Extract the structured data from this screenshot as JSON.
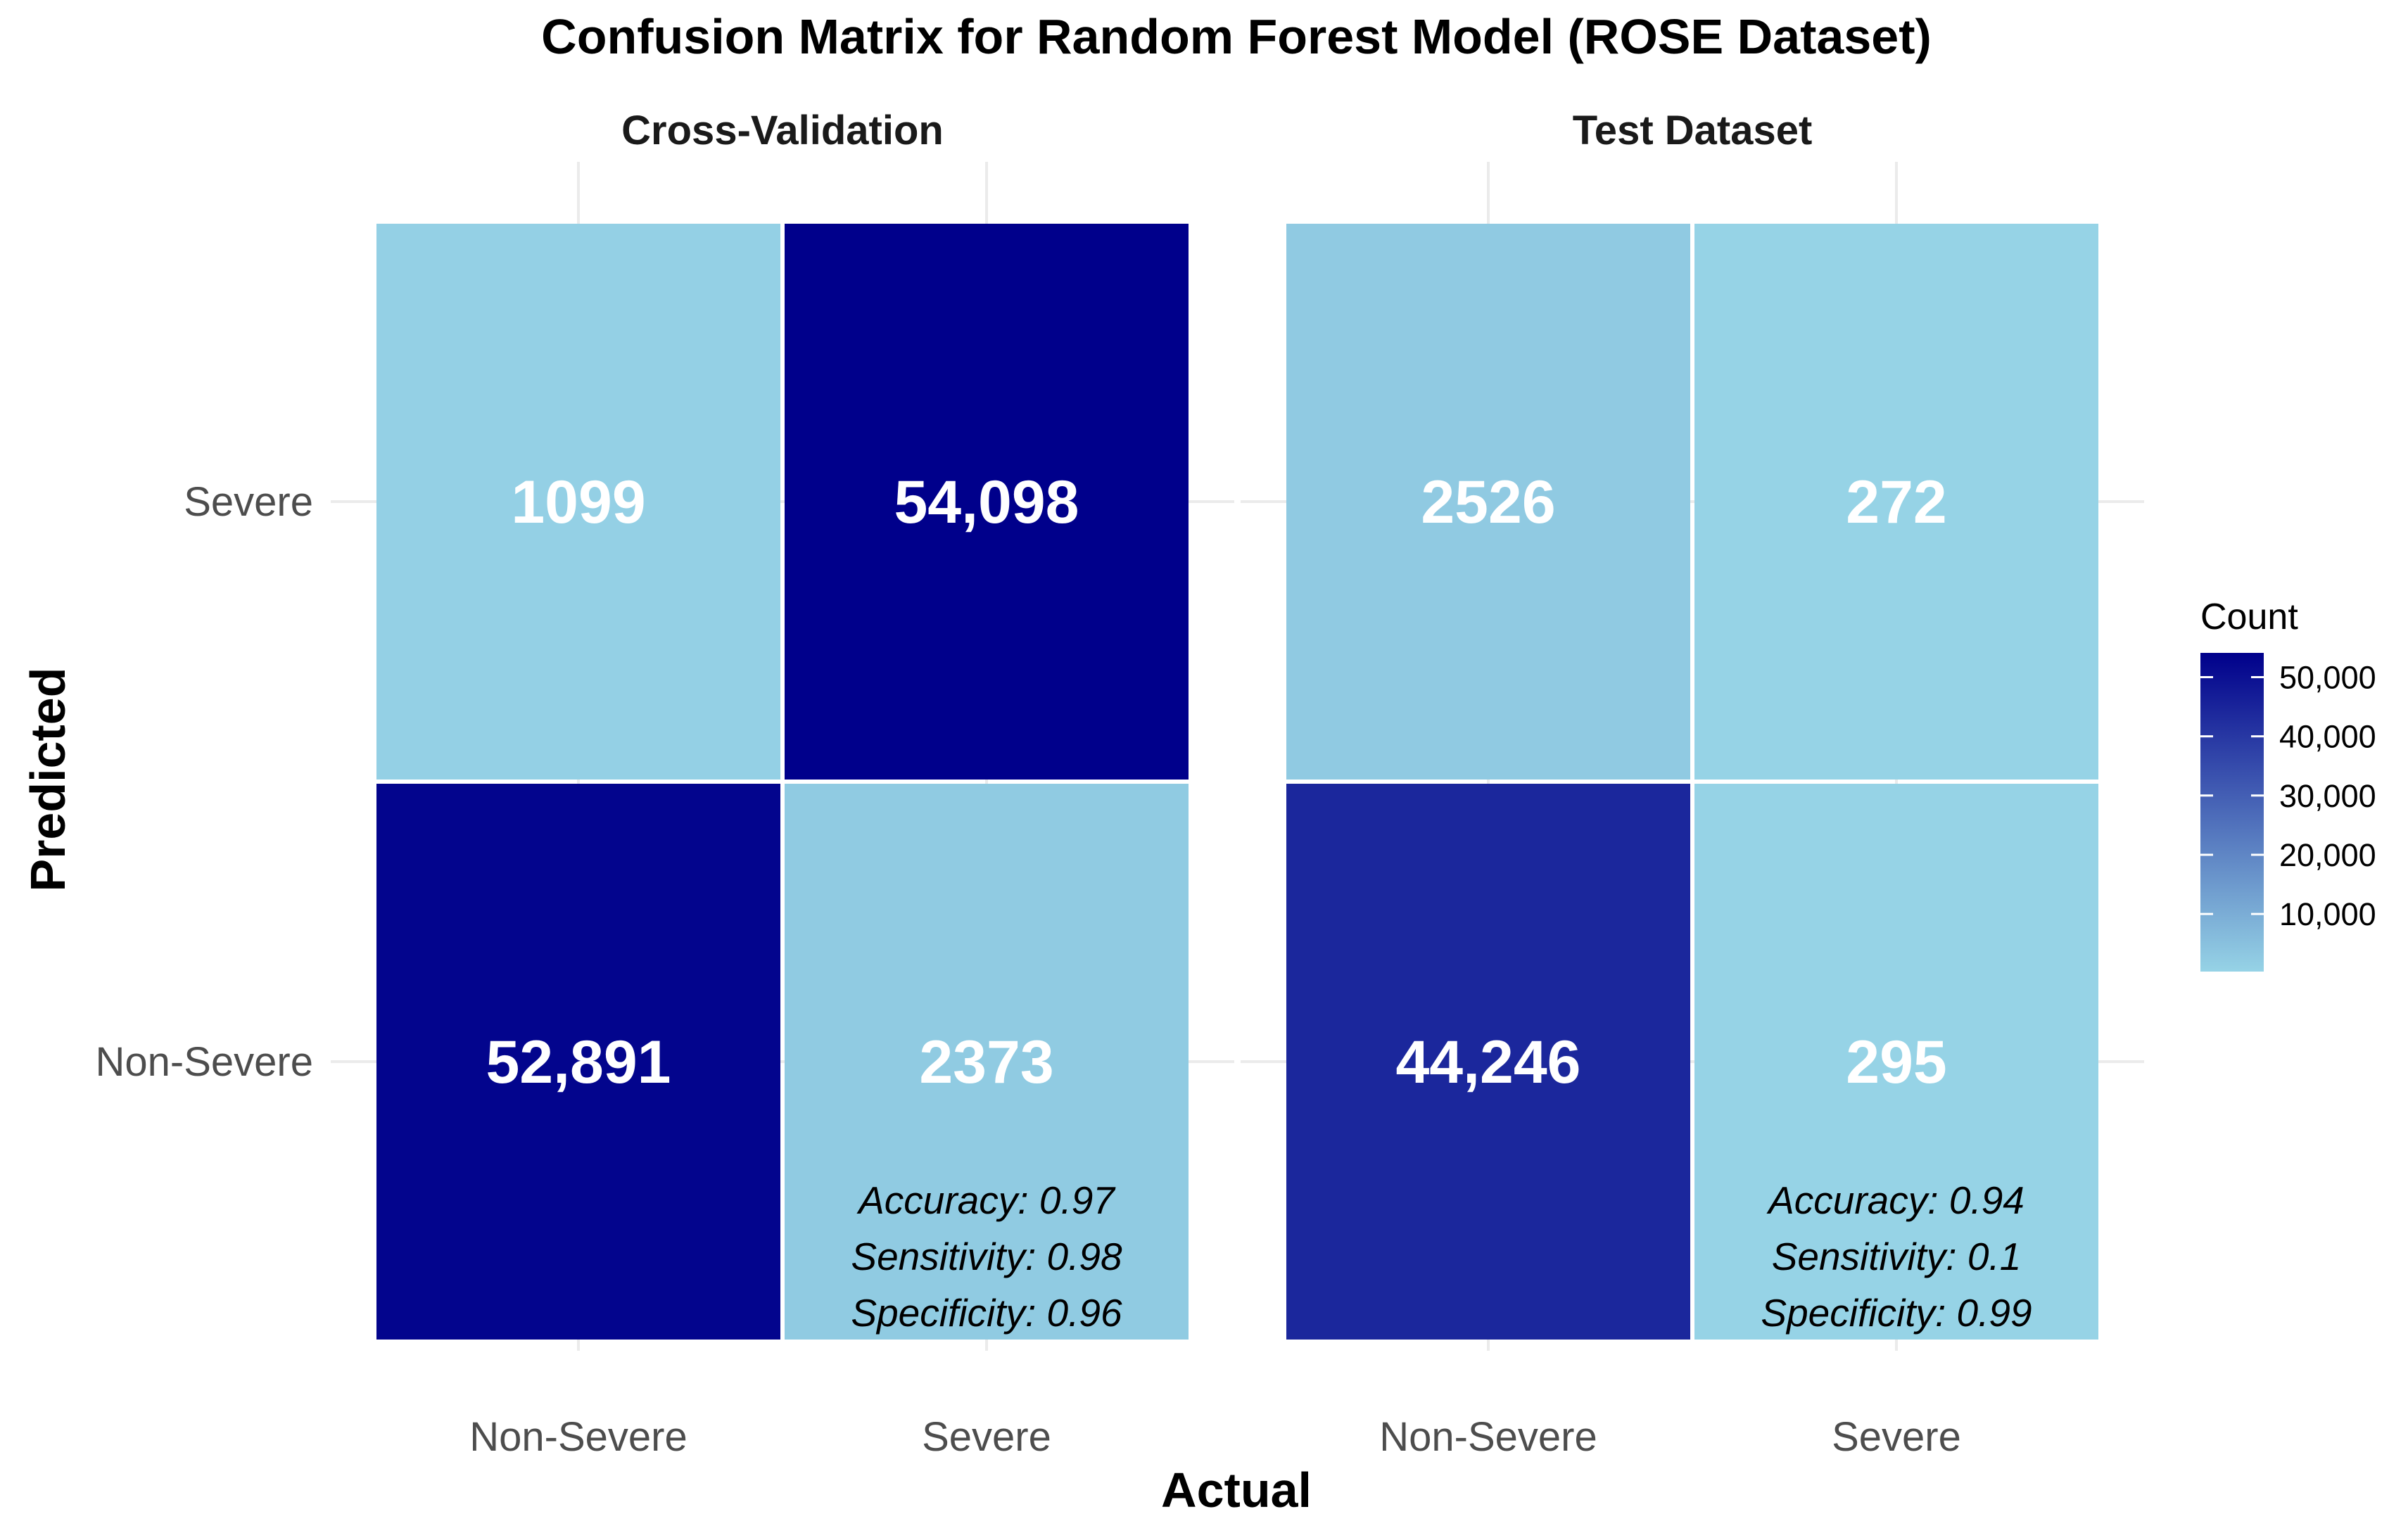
{
  "chart_data": {
    "type": "heatmap",
    "title": "Confusion Matrix for Random Forest Model (ROSE Dataset)",
    "xlabel": "Actual",
    "ylabel": "Predicted",
    "x_categories": [
      "Non-Severe",
      "Severe"
    ],
    "y_categories": [
      "Non-Severe",
      "Severe"
    ],
    "legend": {
      "title": "Count",
      "position": "right",
      "min": 272,
      "max": 54098,
      "ticks": [
        10000,
        20000,
        30000,
        40000,
        50000
      ],
      "tick_labels": [
        "10,000",
        "20,000",
        "30,000",
        "40,000",
        "50,000"
      ],
      "low_color": "#96D3E6",
      "high_color": "#00008B"
    },
    "panels": [
      {
        "name": "Cross-Validation",
        "cells": [
          {
            "actual": "Non-Severe",
            "predicted": "Severe",
            "value": 1099,
            "label": "1099"
          },
          {
            "actual": "Severe",
            "predicted": "Severe",
            "value": 54098,
            "label": "54,098"
          },
          {
            "actual": "Non-Severe",
            "predicted": "Non-Severe",
            "value": 52891,
            "label": "52,891"
          },
          {
            "actual": "Severe",
            "predicted": "Non-Severe",
            "value": 2373,
            "label": "2373"
          }
        ],
        "metrics": [
          "Accuracy: 0.97",
          "Sensitivity: 0.98",
          "Specificity: 0.96"
        ]
      },
      {
        "name": "Test Dataset",
        "cells": [
          {
            "actual": "Non-Severe",
            "predicted": "Severe",
            "value": 2526,
            "label": "2526"
          },
          {
            "actual": "Severe",
            "predicted": "Severe",
            "value": 272,
            "label": "272"
          },
          {
            "actual": "Non-Severe",
            "predicted": "Non-Severe",
            "value": 44246,
            "label": "44,246"
          },
          {
            "actual": "Severe",
            "predicted": "Non-Severe",
            "value": 295,
            "label": "295"
          }
        ],
        "metrics": [
          "Accuracy: 0.94",
          "Sensitivity: 0.1",
          "Specificity: 0.99"
        ]
      }
    ]
  }
}
